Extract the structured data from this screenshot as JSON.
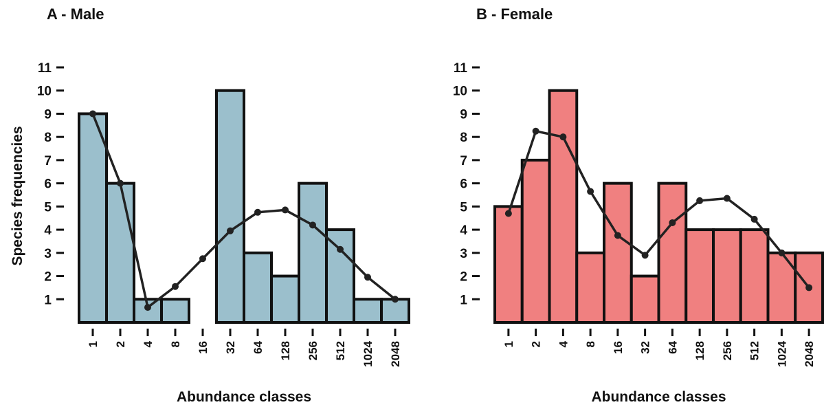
{
  "chart_data": [
    {
      "type": "bar",
      "title": "A - Male",
      "ylabel": "Species frequencies",
      "xlabel": "Abundance classes",
      "categories": [
        "1",
        "2",
        "4",
        "8",
        "16",
        "32",
        "64",
        "128",
        "256",
        "512",
        "1024",
        "2048"
      ],
      "values": [
        9,
        6,
        1,
        1,
        0,
        10,
        3,
        2,
        6,
        4,
        1,
        1
      ],
      "color": "#9bbfcc",
      "line": {
        "values": [
          9,
          6,
          0.65,
          1.55,
          2.75,
          3.95,
          4.75,
          4.85,
          4.2,
          3.15,
          1.95,
          1
        ],
        "color": "#222222"
      },
      "ylim": [
        0,
        11
      ],
      "yticks": [
        1,
        2,
        3,
        4,
        5,
        6,
        7,
        8,
        9,
        10,
        11
      ]
    },
    {
      "type": "bar",
      "title": "B - Female",
      "xlabel": "Abundance classes",
      "categories": [
        "1",
        "2",
        "4",
        "8",
        "16",
        "32",
        "64",
        "128",
        "256",
        "512",
        "1024",
        "2048"
      ],
      "values": [
        5,
        7,
        10,
        3,
        6,
        2,
        6,
        4,
        4,
        4,
        3,
        3
      ],
      "color": "#f08080",
      "line": {
        "values": [
          4.7,
          8.25,
          8,
          5.65,
          3.75,
          2.9,
          4.3,
          5.25,
          5.35,
          4.45,
          3,
          1.5
        ],
        "color": "#222222"
      },
      "ylim": [
        0,
        11
      ],
      "yticks": [
        1,
        2,
        3,
        4,
        5,
        6,
        7,
        8,
        9,
        10,
        11
      ]
    }
  ]
}
